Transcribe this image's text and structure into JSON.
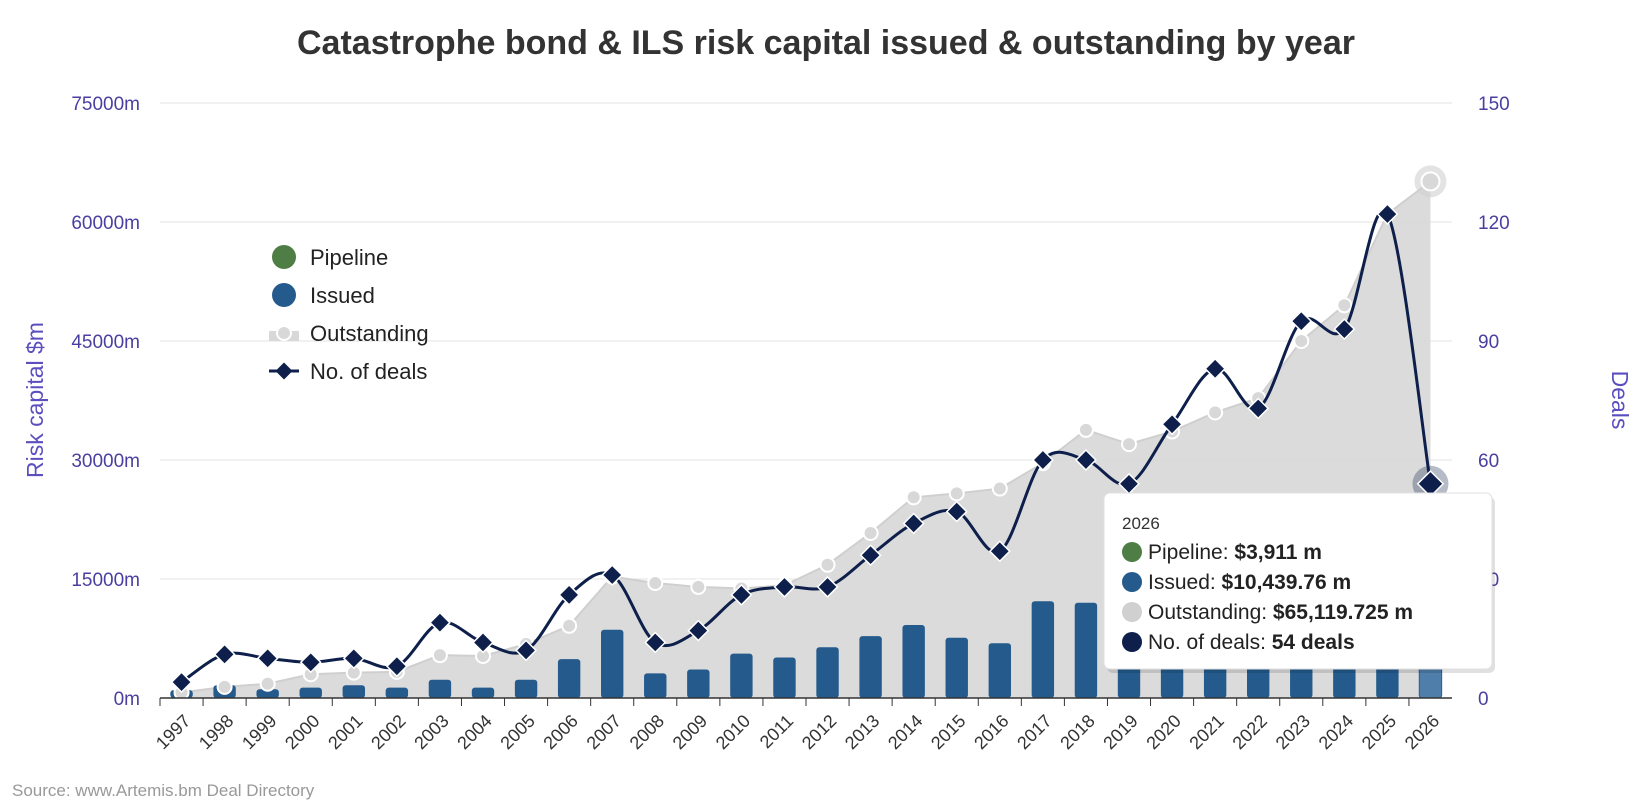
{
  "chart_data": {
    "type": "bar",
    "title": "Catastrophe bond & ILS risk capital issued & outstanding by year",
    "ylabel": "Risk capital $m",
    "y2label": "Deals",
    "ylim": [
      0,
      75000
    ],
    "y2lim": [
      0,
      150
    ],
    "yticks": [
      "0m",
      "15000m",
      "30000m",
      "45000m",
      "60000m",
      "75000m"
    ],
    "y2ticks": [
      "0",
      "30",
      "60",
      "90",
      "120",
      "150"
    ],
    "categories": [
      "1997",
      "1998",
      "1999",
      "2000",
      "2001",
      "2002",
      "2003",
      "2004",
      "2005",
      "2006",
      "2007",
      "2008",
      "2009",
      "2010",
      "2011",
      "2012",
      "2013",
      "2014",
      "2015",
      "2016",
      "2017",
      "2018",
      "2019",
      "2020",
      "2021",
      "2022",
      "2023",
      "2024",
      "2025",
      "2026"
    ],
    "series": [
      {
        "name": "Pipeline",
        "type": "bar",
        "color": "#4e7d45",
        "values": [
          0,
          0,
          0,
          0,
          0,
          0,
          0,
          0,
          0,
          0,
          0,
          0,
          0,
          0,
          0,
          0,
          0,
          0,
          0,
          0,
          0,
          0,
          0,
          0,
          0,
          0,
          0,
          0,
          0,
          3911
        ]
      },
      {
        "name": "Issued",
        "type": "bar",
        "color": "#245a8c",
        "values": [
          1000,
          1600,
          1100,
          1300,
          1600,
          1300,
          2300,
          1300,
          2300,
          4900,
          8600,
          3100,
          3600,
          5600,
          5100,
          6400,
          7800,
          9200,
          7600,
          6900,
          12200,
          12000,
          11500,
          13500,
          15000,
          13500,
          17000,
          18000,
          25500,
          10440
        ]
      },
      {
        "name": "Outstanding",
        "type": "area",
        "color": "#d9d9d9",
        "values": [
          700,
          1400,
          1800,
          3000,
          3200,
          3300,
          5400,
          5300,
          6800,
          9100,
          15300,
          14500,
          14000,
          13800,
          14200,
          16800,
          20800,
          25300,
          25800,
          26400,
          29600,
          33800,
          32000,
          33600,
          36000,
          37800,
          45000,
          49500,
          61000,
          65120
        ]
      },
      {
        "name": "No. of deals",
        "type": "line",
        "axis": "right",
        "color": "#0d1f4a",
        "values": [
          4,
          11,
          10,
          9,
          10,
          8,
          19,
          14,
          12,
          26,
          31,
          14,
          17,
          26,
          28,
          28,
          36,
          44,
          47,
          37,
          60,
          60,
          54,
          69,
          83,
          73,
          95,
          93,
          122,
          54
        ]
      }
    ],
    "legend": {
      "placement": "top-left",
      "items": [
        {
          "name": "Pipeline",
          "color": "#4e7d45"
        },
        {
          "name": "Issued",
          "color": "#245a8c"
        },
        {
          "name": "Outstanding",
          "color": "#d0d0d0"
        },
        {
          "name": "No. of deals",
          "color": "#0d1f4a"
        }
      ]
    },
    "tooltip": {
      "year": "2026",
      "rows": [
        {
          "label": "Pipeline: ",
          "value": "$3,911 m",
          "color": "#4e7d45"
        },
        {
          "label": "Issued: ",
          "value": "$10,439.76 m",
          "color": "#245a8c"
        },
        {
          "label": "Outstanding: ",
          "value": "$65,119.725 m",
          "color": "#d0d0d0"
        },
        {
          "label": "No. of deals: ",
          "value": "54 deals",
          "color": "#0d1f4a"
        }
      ]
    },
    "source": "Source: www.Artemis.bm Deal Directory",
    "grid": true
  }
}
